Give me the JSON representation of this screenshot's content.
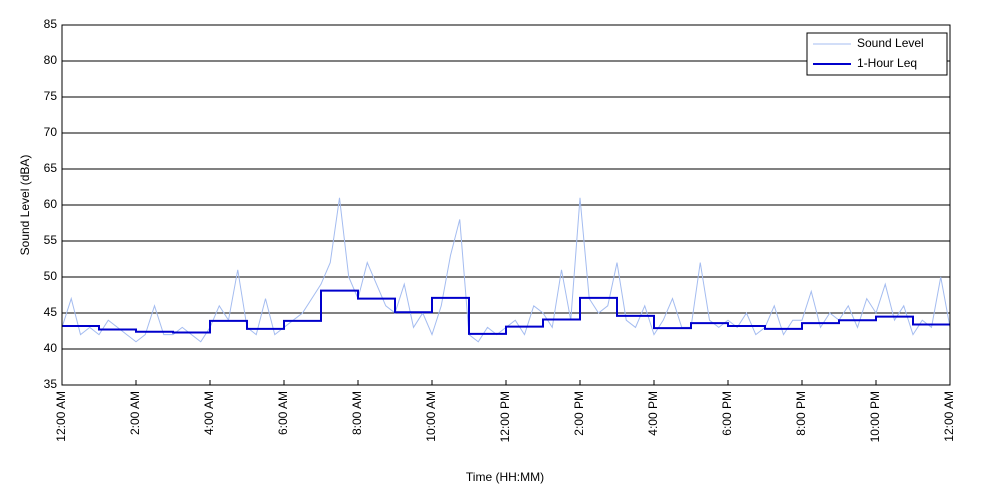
{
  "chart_data": {
    "type": "line",
    "xlabel": "Time (HH:MM)",
    "ylabel": "Sound Level (dBA)",
    "xlim": [
      0,
      24
    ],
    "ylim": [
      35,
      85
    ],
    "xticks": [
      {
        "value": 0,
        "label": "12:00 AM"
      },
      {
        "value": 2,
        "label": "2:00 AM"
      },
      {
        "value": 4,
        "label": "4:00 AM"
      },
      {
        "value": 6,
        "label": "6:00 AM"
      },
      {
        "value": 8,
        "label": "8:00 AM"
      },
      {
        "value": 10,
        "label": "10:00 AM"
      },
      {
        "value": 12,
        "label": "12:00 PM"
      },
      {
        "value": 14,
        "label": "2:00 PM"
      },
      {
        "value": 16,
        "label": "4:00 PM"
      },
      {
        "value": 18,
        "label": "6:00 PM"
      },
      {
        "value": 20,
        "label": "8:00 PM"
      },
      {
        "value": 22,
        "label": "10:00 PM"
      },
      {
        "value": 24,
        "label": "12:00 AM"
      }
    ],
    "yticks": [
      35,
      40,
      45,
      50,
      55,
      60,
      65,
      70,
      75,
      80,
      85
    ],
    "grid": true,
    "legend": "upper right",
    "series": [
      {
        "name": "Sound Level",
        "color": "#a4bcf0",
        "width": 1,
        "step": false,
        "x": [
          0,
          0.25,
          0.5,
          0.75,
          1,
          1.25,
          1.5,
          1.75,
          2,
          2.25,
          2.5,
          2.75,
          3,
          3.25,
          3.5,
          3.75,
          4,
          4.25,
          4.5,
          4.75,
          5,
          5.25,
          5.5,
          5.75,
          6,
          6.25,
          6.5,
          6.75,
          7,
          7.25,
          7.5,
          7.75,
          8,
          8.25,
          8.5,
          8.75,
          9,
          9.25,
          9.5,
          9.75,
          10,
          10.25,
          10.5,
          10.75,
          11,
          11.25,
          11.5,
          11.75,
          12,
          12.25,
          12.5,
          12.75,
          13,
          13.25,
          13.5,
          13.75,
          14,
          14.25,
          14.5,
          14.75,
          15,
          15.25,
          15.5,
          15.75,
          16,
          16.25,
          16.5,
          16.75,
          17,
          17.25,
          17.5,
          17.75,
          18,
          18.25,
          18.5,
          18.75,
          19,
          19.25,
          19.5,
          19.75,
          20,
          20.25,
          20.5,
          20.75,
          21,
          21.25,
          21.5,
          21.75,
          22,
          22.25,
          22.5,
          22.75,
          23,
          23.25,
          23.5,
          23.75,
          24
        ],
        "values": [
          43,
          47,
          42,
          43,
          42,
          44,
          43,
          42,
          41,
          42,
          46,
          42,
          42,
          43,
          42,
          41,
          43,
          46,
          44,
          51,
          43,
          42,
          47,
          42,
          43,
          44,
          45,
          47,
          49,
          52,
          61,
          50,
          47,
          52,
          49,
          46,
          45,
          49,
          43,
          45,
          42,
          46,
          53,
          58,
          42,
          41,
          43,
          42,
          43,
          44,
          42,
          46,
          45,
          43,
          51,
          44,
          61,
          47,
          45,
          46,
          52,
          44,
          43,
          46,
          42,
          44,
          47,
          43,
          43,
          52,
          44,
          43,
          44,
          43,
          45,
          42,
          43,
          46,
          42,
          44,
          44,
          48,
          43,
          45,
          44,
          46,
          43,
          47,
          45,
          49,
          44,
          46,
          42,
          44,
          43,
          50,
          43
        ]
      },
      {
        "name": "1-Hour Leq",
        "color": "#0000cc",
        "width": 2,
        "step": true,
        "x": [
          0,
          1,
          2,
          3,
          4,
          5,
          6,
          7,
          8,
          9,
          10,
          11,
          12,
          13,
          14,
          15,
          16,
          17,
          18,
          19,
          20,
          21,
          22,
          23
        ],
        "values": [
          43.2,
          42.7,
          42.4,
          42.3,
          43.9,
          42.8,
          43.9,
          48.1,
          47.0,
          45.1,
          47.1,
          42.1,
          43.1,
          44.1,
          47.1,
          44.6,
          42.9,
          43.6,
          43.2,
          42.8,
          43.6,
          44.0,
          44.5,
          43.4
        ]
      }
    ]
  }
}
